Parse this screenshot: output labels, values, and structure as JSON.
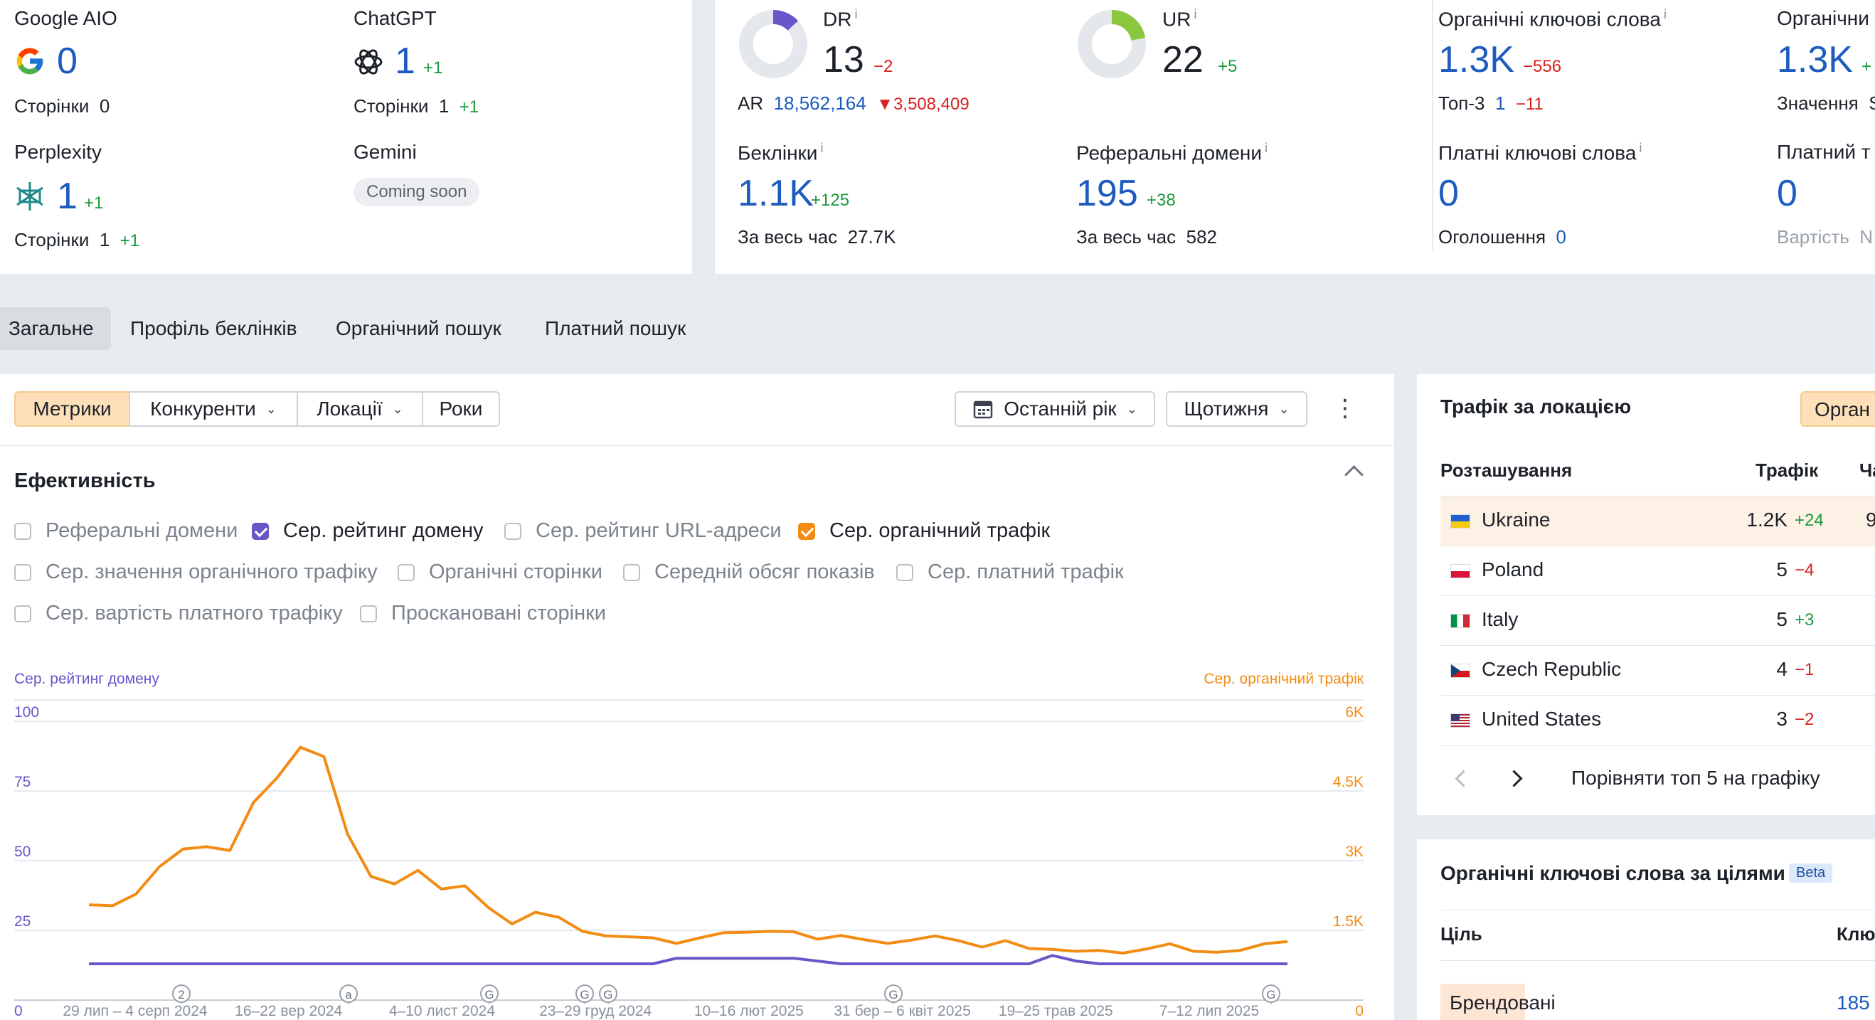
{
  "ai": {
    "google": {
      "label": "Google AIO",
      "value": "0",
      "pages_label": "Сторінки",
      "pages": "0"
    },
    "chatgpt": {
      "label": "ChatGPT",
      "value": "1",
      "delta": "+1",
      "pages_label": "Сторінки",
      "pages": "1",
      "pages_delta": "+1"
    },
    "perplexity": {
      "label": "Perplexity",
      "value": "1",
      "delta": "+1",
      "pages_label": "Сторінки",
      "pages": "1",
      "pages_delta": "+1"
    },
    "gemini": {
      "label": "Gemini",
      "badge": "Coming soon"
    }
  },
  "dr": {
    "label": "DR",
    "info": "i",
    "value": "13",
    "delta": "−2",
    "ar_label": "AR",
    "ar": "18,562,164",
    "ar_delta": "3,508,409",
    "gauge_fraction": 0.13,
    "gauge_color": "#6a55c9"
  },
  "ur": {
    "label": "UR",
    "info": "i",
    "value": "22",
    "delta": "+5",
    "gauge_fraction": 0.22,
    "gauge_color": "#8cc63f"
  },
  "backlinks": {
    "label": "Беклінки",
    "info": "i",
    "value": "1.1K",
    "delta": "+125",
    "all_label": "За весь час",
    "all": "27.7K"
  },
  "refdomains": {
    "label": "Реферальні домени",
    "info": "i",
    "value": "195",
    "delta": "+38",
    "all_label": "За весь час",
    "all": "582"
  },
  "organic_kw": {
    "label": "Органічні ключові слова",
    "info": "i",
    "value": "1.3K",
    "delta": "−556",
    "top3_label": "Топ-3",
    "top3": "1",
    "top3_delta": "−11"
  },
  "organic_tr": {
    "label": "Органічни",
    "value": "1.3K",
    "delta": "+",
    "sub_label": "Значення",
    "sub_value": "S"
  },
  "paid_kw": {
    "label": "Платні ключові слова",
    "info": "i",
    "value": "0",
    "ads_label": "Оголошення",
    "ads": "0"
  },
  "paid_tr": {
    "label": "Платний т",
    "value": "0",
    "cost_label": "Вартість",
    "cost": "N"
  },
  "tabs": [
    "Загальне",
    "Профіль беклінків",
    "Органічний пошук",
    "Платний пошук"
  ],
  "toolbar": {
    "metrics": "Метрики",
    "competitors": "Конкуренти",
    "locations": "Локації",
    "years": "Роки",
    "period": "Останній рік",
    "interval": "Щотижня",
    "chev": "⌄",
    "more": "⋮"
  },
  "perf": {
    "title": "Ефективність",
    "checks": [
      {
        "label": "Реферальні домени",
        "checked": false
      },
      {
        "label": "Сер. рейтинг домену",
        "checked": true
      },
      {
        "label": "Сер. рейтинг URL-адреси",
        "checked": false
      },
      {
        "label": "Сер. органічний трафік",
        "checked": true
      },
      {
        "label": "Сер. значення органічного трафіку",
        "checked": false
      },
      {
        "label": "Органічні сторінки",
        "checked": false
      },
      {
        "label": "Середній обсяг показів",
        "checked": false
      },
      {
        "label": "Сер. платний трафік",
        "checked": false
      },
      {
        "label": "Сер. вартість платного трафіку",
        "checked": false
      },
      {
        "label": "Проскановані сторінки",
        "checked": false
      }
    ]
  },
  "chart_data": {
    "type": "line",
    "ylabel_left": "Сер. рейтинг домену",
    "ylabel_right": "Сер. органічний трафік",
    "yticks_left": [
      "100",
      "75",
      "50",
      "25",
      "0"
    ],
    "yticks_right": [
      "6K",
      "4.5K",
      "3K",
      "1.5K",
      "0"
    ],
    "ylim_left": [
      0,
      100
    ],
    "ylim_right": [
      0,
      6000
    ],
    "xticks": [
      "29 лип – 4 серп 2024",
      "16–22 вер 2024",
      "4–10 лист 2024",
      "23–29 груд 2024",
      "10–16 лют 2025",
      "31 бер – 6 квіт 2025",
      "19–25 трав 2025",
      "7–12 лип 2025"
    ],
    "annotations": [
      "2",
      "a",
      "G",
      "G",
      "G",
      "G",
      "G"
    ],
    "series": [
      {
        "name": "Сер. органічний трафік",
        "axis": "right",
        "color": "#f28c13",
        "values": [
          2050,
          2030,
          2280,
          2870,
          3250,
          3300,
          3220,
          4250,
          4780,
          5440,
          5240,
          3580,
          2660,
          2500,
          2790,
          2390,
          2460,
          1990,
          1640,
          1890,
          1780,
          1480,
          1380,
          1360,
          1340,
          1220,
          1340,
          1450,
          1460,
          1480,
          1470,
          1310,
          1390,
          1300,
          1220,
          1290,
          1380,
          1280,
          1140,
          1280,
          1110,
          1090,
          1050,
          1070,
          1010,
          1100,
          1210,
          1050,
          1030,
          1070,
          1210,
          1260
        ]
      },
      {
        "name": "Сер. рейтинг домену",
        "axis": "left",
        "color": "#6a55c9",
        "values": [
          13,
          13,
          13,
          13,
          13,
          13,
          13,
          13,
          13,
          13,
          13,
          13,
          13,
          13,
          13,
          13,
          13,
          13,
          13,
          13,
          13,
          13,
          13,
          13,
          13,
          15,
          15,
          15,
          15,
          15,
          15,
          14,
          13,
          13,
          13,
          13,
          13,
          13,
          13,
          13,
          13,
          16,
          14,
          13,
          13,
          13,
          13,
          13,
          13,
          13,
          13,
          13
        ]
      }
    ]
  },
  "locations": {
    "title": "Трафік за локацією",
    "button": "Орган",
    "col_location": "Розташування",
    "col_traffic": "Трафік",
    "col_extra": "Ча",
    "rows": [
      {
        "country": "Ukraine",
        "traffic": "1.2K",
        "delta": "+24",
        "extra": "9"
      },
      {
        "country": "Poland",
        "traffic": "5",
        "delta": "−4",
        "extra": ""
      },
      {
        "country": "Italy",
        "traffic": "5",
        "delta": "+3",
        "extra": ""
      },
      {
        "country": "Czech Republic",
        "traffic": "4",
        "delta": "−1",
        "extra": ""
      },
      {
        "country": "United States",
        "traffic": "3",
        "delta": "−2",
        "extra": ""
      }
    ],
    "compare": "Порівняти топ 5 на графіку"
  },
  "intent": {
    "title": "Органічні ключові слова за цілями",
    "badge": "Beta",
    "col_goal": "Ціль",
    "col_kw": "Клю",
    "row_label": "Брендовані",
    "row_value": "185"
  }
}
